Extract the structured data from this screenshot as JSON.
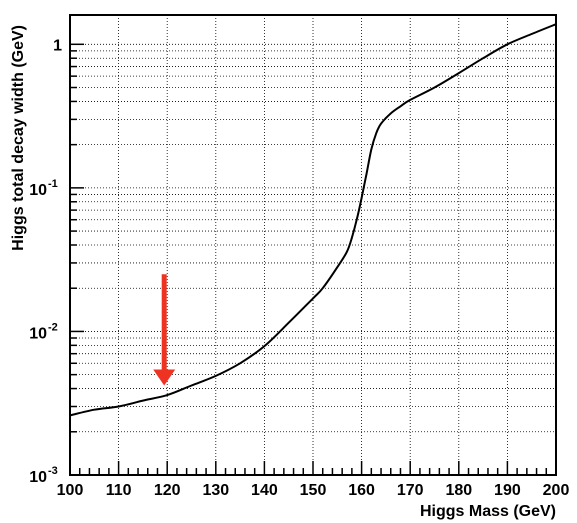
{
  "chart_data": {
    "type": "line",
    "title": "",
    "xlabel": "Higgs Mass (GeV)",
    "ylabel": "Higgs total decay width (GeV)",
    "xlim": [
      100,
      200
    ],
    "ylim": [
      0.001,
      1.6
    ],
    "yscale": "log",
    "grid": true,
    "x_ticks": [
      {
        "value": 100,
        "label": "100"
      },
      {
        "value": 110,
        "label": "110"
      },
      {
        "value": 120,
        "label": "120"
      },
      {
        "value": 130,
        "label": "130"
      },
      {
        "value": 140,
        "label": "140"
      },
      {
        "value": 150,
        "label": "150"
      },
      {
        "value": 160,
        "label": "160"
      },
      {
        "value": 170,
        "label": "170"
      },
      {
        "value": 180,
        "label": "180"
      },
      {
        "value": 190,
        "label": "190"
      },
      {
        "value": 200,
        "label": "200"
      }
    ],
    "y_ticks": [
      {
        "value": 0.001,
        "base": "10",
        "exp": "-3"
      },
      {
        "value": 0.01,
        "base": "10",
        "exp": "-2"
      },
      {
        "value": 0.1,
        "base": "10",
        "exp": "-1"
      },
      {
        "value": 1,
        "base": "1",
        "exp": ""
      }
    ],
    "series": [
      {
        "color": "#000000",
        "x": [
          100,
          105,
          110,
          115,
          120,
          125,
          130,
          135,
          140,
          145,
          150,
          152,
          155,
          157,
          158,
          159,
          160,
          161,
          162,
          163,
          164,
          166,
          168,
          170,
          175,
          180,
          185,
          190,
          195,
          200
        ],
        "y": [
          0.0026,
          0.00285,
          0.003,
          0.0033,
          0.0036,
          0.0042,
          0.0049,
          0.006,
          0.0079,
          0.0115,
          0.017,
          0.02,
          0.028,
          0.036,
          0.045,
          0.06,
          0.085,
          0.125,
          0.185,
          0.24,
          0.28,
          0.33,
          0.37,
          0.41,
          0.5,
          0.63,
          0.8,
          1.0,
          1.18,
          1.38
        ]
      }
    ],
    "annotation": {
      "type": "arrow",
      "color": "#ee3322",
      "x": 120,
      "y_from": 0.025,
      "y_to": 0.0042
    }
  }
}
